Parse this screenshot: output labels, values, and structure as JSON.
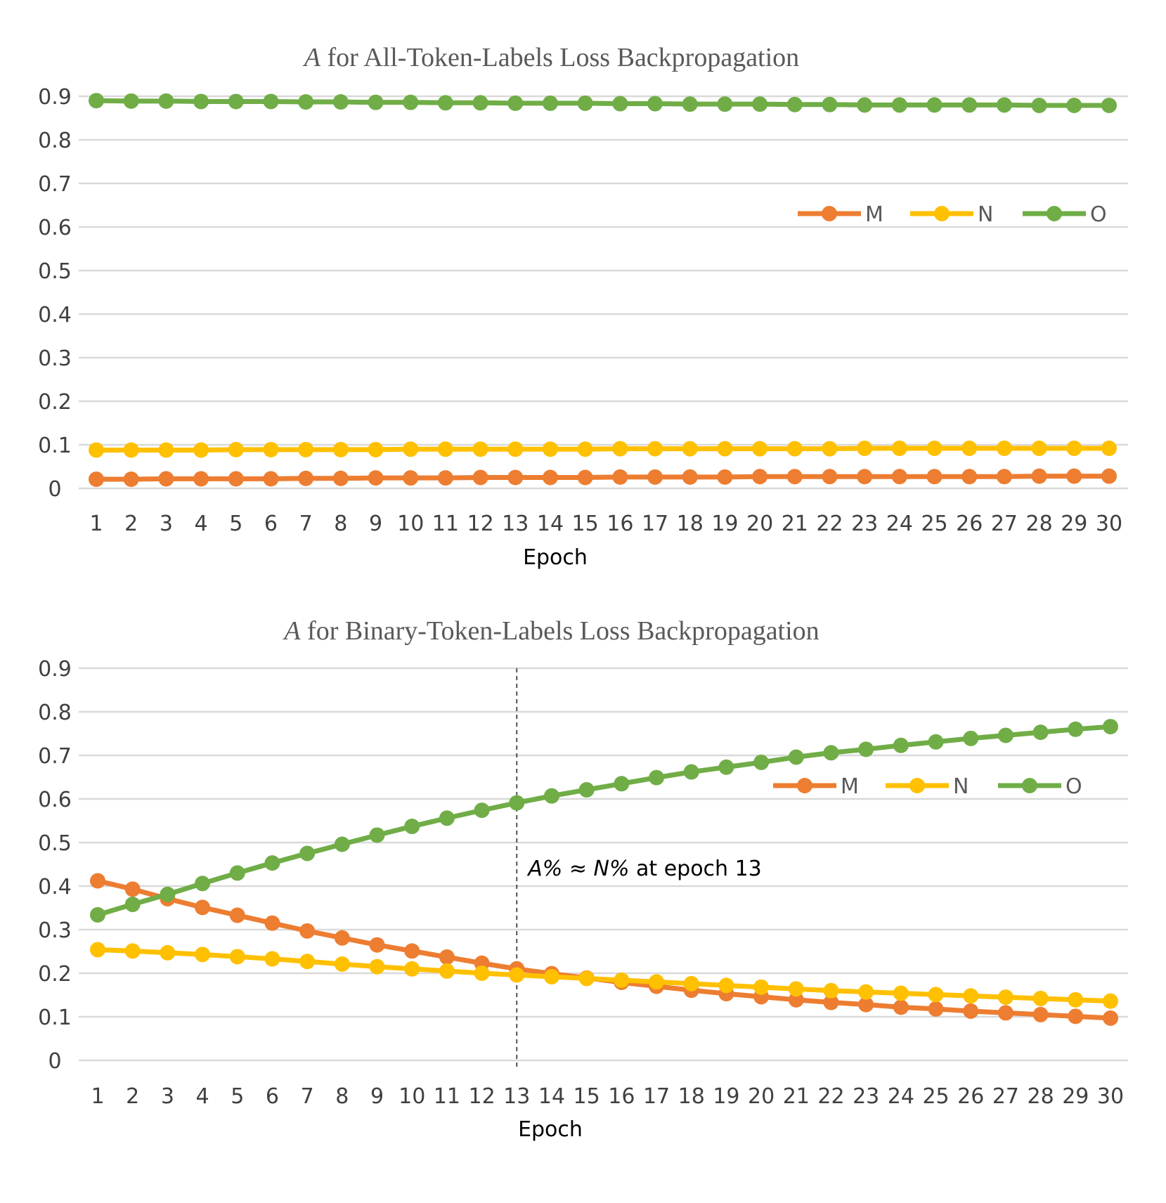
{
  "chart_data": [
    {
      "type": "line",
      "title_symbol": "A",
      "title_rest": " for All-Token-Labels Loss Backpropagation",
      "xlabel": "Epoch",
      "ylabel": "",
      "ylim": [
        0,
        0.9
      ],
      "yticks": [
        "0",
        "0.1",
        "0.2",
        "0.3",
        "0.4",
        "0.5",
        "0.6",
        "0.7",
        "0.8",
        "0.9"
      ],
      "categories": [
        "1",
        "2",
        "3",
        "4",
        "5",
        "6",
        "7",
        "8",
        "9",
        "10",
        "11",
        "12",
        "13",
        "14",
        "15",
        "16",
        "17",
        "18",
        "19",
        "20",
        "21",
        "22",
        "23",
        "24",
        "25",
        "26",
        "27",
        "28",
        "29",
        "30"
      ],
      "grid": true,
      "legend_position": "right",
      "series": [
        {
          "name": "M",
          "color": "#ED7D31",
          "values": [
            0.021,
            0.021,
            0.022,
            0.022,
            0.022,
            0.022,
            0.023,
            0.023,
            0.024,
            0.024,
            0.024,
            0.025,
            0.025,
            0.025,
            0.025,
            0.026,
            0.026,
            0.026,
            0.026,
            0.027,
            0.027,
            0.027,
            0.027,
            0.027,
            0.027,
            0.027,
            0.027,
            0.028,
            0.028,
            0.028
          ]
        },
        {
          "name": "N",
          "color": "#FFC000",
          "values": [
            0.088,
            0.088,
            0.088,
            0.088,
            0.089,
            0.089,
            0.089,
            0.089,
            0.089,
            0.09,
            0.09,
            0.09,
            0.09,
            0.09,
            0.09,
            0.091,
            0.091,
            0.091,
            0.091,
            0.091,
            0.091,
            0.091,
            0.092,
            0.092,
            0.092,
            0.092,
            0.092,
            0.092,
            0.092,
            0.092
          ]
        },
        {
          "name": "O",
          "color": "#70AD47",
          "values": [
            0.89,
            0.889,
            0.889,
            0.888,
            0.888,
            0.888,
            0.887,
            0.887,
            0.886,
            0.886,
            0.885,
            0.885,
            0.884,
            0.884,
            0.884,
            0.883,
            0.883,
            0.882,
            0.882,
            0.882,
            0.881,
            0.881,
            0.88,
            0.88,
            0.88,
            0.88,
            0.88,
            0.879,
            0.879,
            0.879
          ]
        }
      ]
    },
    {
      "type": "line",
      "title_symbol": "A",
      "title_rest": " for Binary-Token-Labels Loss Backpropagation",
      "xlabel": "Epoch",
      "ylabel": "",
      "ylim": [
        0,
        0.9
      ],
      "yticks": [
        "0",
        "0.1",
        "0.2",
        "0.3",
        "0.4",
        "0.5",
        "0.6",
        "0.7",
        "0.8",
        "0.9"
      ],
      "categories": [
        "1",
        "2",
        "3",
        "4",
        "5",
        "6",
        "7",
        "8",
        "9",
        "10",
        "11",
        "12",
        "13",
        "14",
        "15",
        "16",
        "17",
        "18",
        "19",
        "20",
        "21",
        "22",
        "23",
        "24",
        "25",
        "26",
        "27",
        "28",
        "29",
        "30"
      ],
      "grid": true,
      "legend_position": "right",
      "series": [
        {
          "name": "M",
          "color": "#ED7D31",
          "values": [
            0.412,
            0.393,
            0.371,
            0.351,
            0.333,
            0.315,
            0.297,
            0.281,
            0.265,
            0.251,
            0.237,
            0.223,
            0.21,
            0.199,
            0.189,
            0.179,
            0.17,
            0.161,
            0.153,
            0.146,
            0.139,
            0.133,
            0.128,
            0.122,
            0.118,
            0.113,
            0.109,
            0.105,
            0.101,
            0.097
          ]
        },
        {
          "name": "N",
          "color": "#FFC000",
          "values": [
            0.254,
            0.251,
            0.247,
            0.243,
            0.238,
            0.233,
            0.227,
            0.221,
            0.215,
            0.21,
            0.205,
            0.2,
            0.196,
            0.192,
            0.188,
            0.184,
            0.18,
            0.176,
            0.172,
            0.168,
            0.164,
            0.16,
            0.157,
            0.154,
            0.151,
            0.148,
            0.145,
            0.142,
            0.139,
            0.136
          ]
        },
        {
          "name": "O",
          "color": "#70AD47",
          "values": [
            0.334,
            0.358,
            0.381,
            0.406,
            0.43,
            0.453,
            0.475,
            0.496,
            0.517,
            0.537,
            0.556,
            0.574,
            0.591,
            0.607,
            0.621,
            0.635,
            0.649,
            0.662,
            0.673,
            0.684,
            0.696,
            0.706,
            0.714,
            0.723,
            0.731,
            0.739,
            0.746,
            0.753,
            0.76,
            0.766
          ]
        }
      ],
      "reference_line": {
        "category": "13",
        "style": "dashed"
      },
      "annotation": {
        "part1": "A%",
        "part2": " ≈ ",
        "part3": "N%",
        "part4": " at epoch 13",
        "anchor_category": "13",
        "anchor_value": 0.44
      }
    }
  ]
}
